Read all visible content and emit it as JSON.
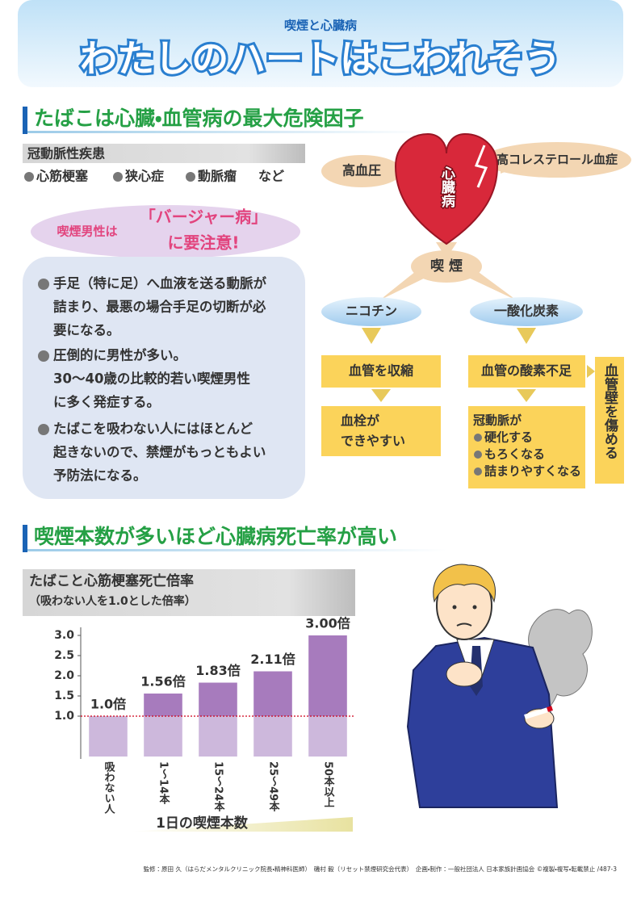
{
  "header": {
    "kicker": "喫煙と心臓病",
    "title": "わたしのハートはこわれそう"
  },
  "section1": {
    "heading": "たばこは心臓・血管病の最大危険因子",
    "disease_title": "冠動脈性疾患",
    "diseases": [
      "心筋梗塞",
      "狭心症",
      "動脈瘤"
    ],
    "diseases_suffix": "など",
    "callout": {
      "lead": "喫煙男性は",
      "name": "「バージャー病」",
      "tail": "に要注意!"
    },
    "points": [
      [
        "手足（特に足）へ血液を送る動脈が",
        "詰まり、最悪の場合手足の切断が必",
        "要になる。"
      ],
      [
        "圧倒的に男性が多い。",
        "30〜40歳の比較的若い喫煙男性",
        "に多く発症する。"
      ],
      [
        "たばこを吸わない人にはほとんど",
        "起きないので、禁煙がもっともよい",
        "予防法になる。"
      ]
    ]
  },
  "diagram": {
    "heart": "心臓病",
    "left_cause": "高血圧",
    "right_cause": "高コレステロール血症",
    "smoking": "喫 煙",
    "nicotine": "ニコチン",
    "carbon_monoxide": "一酸化炭素",
    "nicotine_effect_1": "血管を収縮",
    "nicotine_effect_2": [
      "血栓が",
      "できやすい"
    ],
    "co_effect_1": "血管の酸素不足",
    "co_effect_2_title": "冠動脈が",
    "co_effect_2_items": [
      "硬化する",
      "もろくなる",
      "詰まりやすくなる"
    ],
    "wall_damage": "血管壁を傷める"
  },
  "section2": {
    "heading": "喫煙本数が多いほど心臓病死亡率が高い"
  },
  "chart_data": {
    "type": "bar",
    "title": "たばこと心筋梗塞死亡倍率",
    "subtitle": "（吸わない人を1.0とした倍率）",
    "xlabel": "1日の喫煙本数",
    "categories": [
      "吸わない人",
      "1〜14本",
      "15〜24本",
      "25〜49本",
      "50本以上"
    ],
    "values": [
      1.0,
      1.56,
      1.83,
      2.11,
      3.0
    ],
    "value_labels": [
      "1.0倍",
      "1.56倍",
      "1.83倍",
      "2.11倍",
      "3.00倍"
    ],
    "ylim": [
      0,
      3.2
    ],
    "yticks": [
      {
        "value": 1,
        "label": "1.0"
      },
      1.5,
      {
        "value": 2,
        "label": "2.0"
      },
      2.5,
      {
        "value": 3,
        "label": "3.0"
      }
    ],
    "color": "#a77bbd",
    "base_color": "#cdb8dc",
    "reference_line": 1,
    "reference_color": "#d0021b",
    "grid": false
  },
  "footer": "監修：原田 久（はらだメンタルクリニック院長・精神科医師）　磯村 毅（リセット禁煙研究会代表）　企画・制作：一般社団法人 日本家族計画協会 ©複製・複写・転載禁止 /487-3"
}
